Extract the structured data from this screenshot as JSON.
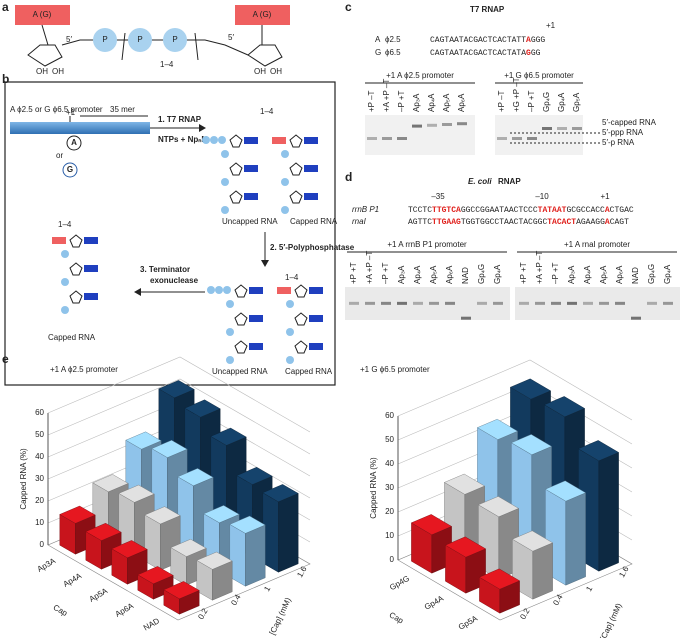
{
  "figure": {
    "panel_labels": [
      "a",
      "b",
      "c",
      "d",
      "e"
    ],
    "a": {
      "bases": [
        "A (G)",
        "A (G)"
      ],
      "primes": [
        "5′",
        "5′"
      ],
      "hydroxyls": [
        "OH",
        "OH",
        "OH",
        "OH"
      ],
      "phosphates": [
        "P",
        "P",
        "P"
      ],
      "repeat": "1–4"
    },
    "b": {
      "promoter": "A ϕ2.5 or G ϕ6.5 promoter",
      "plus1": "+1",
      "length": "35 mer",
      "base_a": "A",
      "or": "or",
      "base_g": "G",
      "step1": "1. T7 RNAP",
      "reagents": "NTPs + NpₙN",
      "repeat_labels": [
        "1–4",
        "1–4",
        "1–4"
      ],
      "products_top": [
        "Uncapped RNA",
        "Capped RNA"
      ],
      "step2": "2. 5′-Polyphosphatase",
      "products_bottom": [
        "Uncapped RNA",
        "Capped RNA"
      ],
      "step3": [
        "3. Terminator",
        "exonuclease"
      ],
      "final": "Capped RNA"
    },
    "c": {
      "title": "T7 RNAP",
      "plus1": "+1",
      "promoters": [
        {
          "base": "A",
          "name": "ϕ2.5",
          "seq": [
            "CAGTAATACGACTCACTATT",
            "A",
            "GGG"
          ]
        },
        {
          "base": "G",
          "name": "ϕ6.5",
          "seq": [
            "CAGTAATACGACTCACTATA",
            "G",
            "GG"
          ]
        }
      ],
      "gels": [
        {
          "title": "+1 A ϕ2.5 promoter",
          "lanes": [
            "+P –T",
            "+A +P –T",
            "–P +T",
            "Ap₃A",
            "Ap₄A",
            "Ap₅A",
            "Ap₆A"
          ]
        },
        {
          "title": "+1 G ϕ6.5 promoter",
          "lanes": [
            "+P –T",
            "+G +P –T",
            "–P +T",
            "Gp₄G",
            "Gp₄A",
            "Gp₅A"
          ]
        }
      ],
      "bands": [
        "5′-capped RNA",
        "5′-ppp RNA",
        "5′-p RNA"
      ]
    },
    "d": {
      "organism": "E. coli",
      "title": "RNAP",
      "positions": [
        "–35",
        "–10",
        "+1"
      ],
      "promoters": [
        {
          "name": "rrnB P1",
          "seq": [
            "TCCTC",
            "TTGTCA",
            "GGCCGGAATAACTCCC",
            "TATAAT",
            "GCGCCACC",
            "A",
            "CTGAC"
          ]
        },
        {
          "name": "rnaI",
          "seq": [
            "AGTTC",
            "TTGAAG",
            "TGGTGGCCTAACTACGGC",
            "TACACT",
            "AGAAGG",
            "A",
            "CAGT"
          ]
        }
      ],
      "gels": [
        {
          "title": "+1 A rrnB P1 promoter",
          "lanes": [
            "+P +T",
            "+A +P –T",
            "–P +T",
            "Ap₃A",
            "Ap₄A",
            "Ap₅A",
            "Ap₆A",
            "NAD",
            "Gp₄G",
            "Gp₄A"
          ]
        },
        {
          "title": "+1 A rnaI promoter",
          "lanes": [
            "+P +T",
            "+A +P –T",
            "–P +T",
            "Ap₃A",
            "Ap₄A",
            "Ap₅A",
            "Ap₆A",
            "NAD",
            "Gp₄G",
            "Gp₄A"
          ]
        }
      ]
    }
  },
  "chart_data": [
    {
      "type": "bar3d",
      "title": "+1 A ϕ2.5 promoter",
      "y_label": "Capped RNA (%)",
      "x_label": "Cap",
      "depth_label": "[Cap] (mM)",
      "categories": [
        "Ap3A",
        "Ap4A",
        "Ap5A",
        "Ap6A",
        "NAD"
      ],
      "series": [
        {
          "name": "0.2",
          "color": "#c8141c",
          "values": [
            14,
            13,
            12,
            7,
            7
          ]
        },
        {
          "name": "0.4",
          "color": "#c4c4c4",
          "values": [
            22,
            24,
            21,
            13,
            14
          ]
        },
        {
          "name": "1",
          "color": "#8fc3ea",
          "values": [
            35,
            38,
            32,
            22,
            24
          ]
        },
        {
          "name": "1.6",
          "color": "#123a5e",
          "values": [
            52,
            50,
            44,
            33,
            32
          ]
        }
      ],
      "ylim": [
        0,
        60
      ],
      "yticks": [
        0,
        10,
        20,
        30,
        40,
        50,
        60
      ],
      "grid": true
    },
    {
      "type": "bar3d",
      "title": "+1 G ϕ6.5 promoter",
      "y_label": "Capped RNA (%)",
      "x_label": "Cap",
      "depth_label": "[Cap] (mM)",
      "categories": [
        "Gp4G",
        "Gp4A",
        "Gp5A"
      ],
      "series": [
        {
          "name": "0.2",
          "color": "#c8141c",
          "values": [
            16,
            15,
            10
          ]
        },
        {
          "name": "0.4",
          "color": "#c4c4c4",
          "values": [
            27,
            26,
            20
          ]
        },
        {
          "name": "1",
          "color": "#8fc3ea",
          "values": [
            44,
            46,
            35
          ]
        },
        {
          "name": "1.6",
          "color": "#123a5e",
          "values": [
            55,
            56,
            46
          ]
        }
      ],
      "ylim": [
        0,
        60
      ],
      "yticks": [
        0,
        10,
        20,
        30,
        40,
        50,
        60
      ],
      "grid": true
    }
  ]
}
